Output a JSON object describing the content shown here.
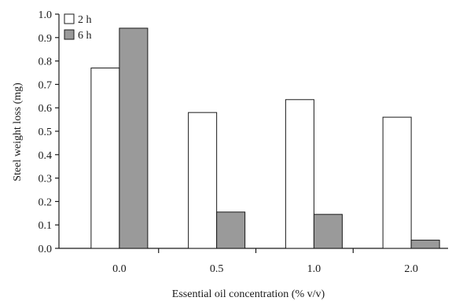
{
  "chart_data": {
    "type": "bar",
    "categories": [
      "0.0",
      "0.5",
      "1.0",
      "2.0"
    ],
    "series": [
      {
        "name": "2 h",
        "values": [
          0.77,
          0.58,
          0.635,
          0.56
        ],
        "color": "#ffffff"
      },
      {
        "name": "6 h",
        "values": [
          0.94,
          0.155,
          0.145,
          0.035
        ],
        "color": "#9a9a9a"
      }
    ],
    "xlabel": "Essential oil concentration (% v/v)",
    "ylabel": "Steel weight loss (mg)",
    "ylim": [
      0,
      1.0
    ],
    "yticks": [
      "0.0",
      "0.1",
      "0.2",
      "0.3",
      "0.4",
      "0.5",
      "0.6",
      "0.7",
      "0.8",
      "0.9",
      "1.0"
    ],
    "grid": false,
    "legend_position": "top-left"
  }
}
